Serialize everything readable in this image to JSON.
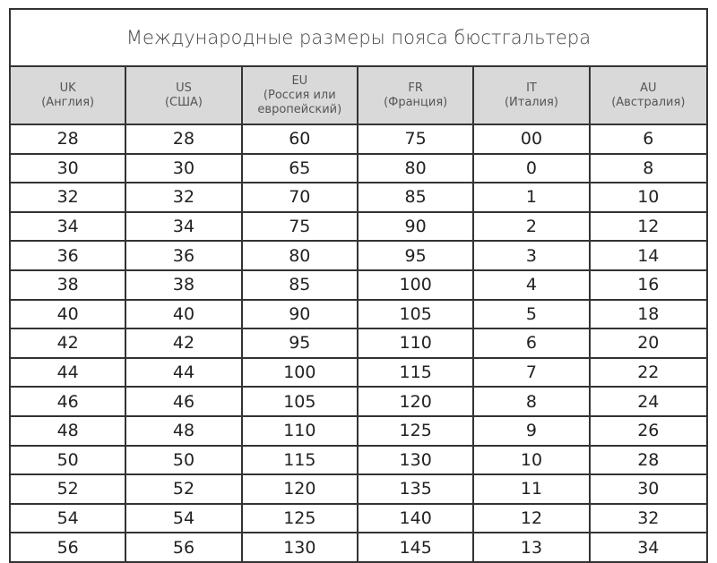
{
  "title": "Международные размеры пояса бюстгальтера",
  "columns": [
    {
      "lines": [
        "UK",
        "(Англия)"
      ]
    },
    {
      "lines": [
        "US",
        "(США)"
      ]
    },
    {
      "lines": [
        "EU",
        "(Россия или",
        "европейский)"
      ]
    },
    {
      "lines": [
        "FR",
        "(Франция)"
      ]
    },
    {
      "lines": [
        "IT",
        "(Италия)"
      ]
    },
    {
      "lines": [
        "AU",
        "(Австралия)"
      ]
    }
  ],
  "rows": [
    [
      "28",
      "28",
      "60",
      "75",
      "00",
      "6"
    ],
    [
      "30",
      "30",
      "65",
      "80",
      "0",
      "8"
    ],
    [
      "32",
      "32",
      "70",
      "85",
      "1",
      "10"
    ],
    [
      "34",
      "34",
      "75",
      "90",
      "2",
      "12"
    ],
    [
      "36",
      "36",
      "80",
      "95",
      "3",
      "14"
    ],
    [
      "38",
      "38",
      "85",
      "100",
      "4",
      "16"
    ],
    [
      "40",
      "40",
      "90",
      "105",
      "5",
      "18"
    ],
    [
      "42",
      "42",
      "95",
      "110",
      "6",
      "20"
    ],
    [
      "44",
      "44",
      "100",
      "115",
      "7",
      "22"
    ],
    [
      "46",
      "46",
      "105",
      "120",
      "8",
      "24"
    ],
    [
      "48",
      "48",
      "110",
      "125",
      "9",
      "26"
    ],
    [
      "50",
      "50",
      "115",
      "130",
      "10",
      "28"
    ],
    [
      "52",
      "52",
      "120",
      "135",
      "11",
      "30"
    ],
    [
      "54",
      "54",
      "125",
      "140",
      "12",
      "32"
    ],
    [
      "56",
      "56",
      "130",
      "145",
      "13",
      "34"
    ]
  ]
}
